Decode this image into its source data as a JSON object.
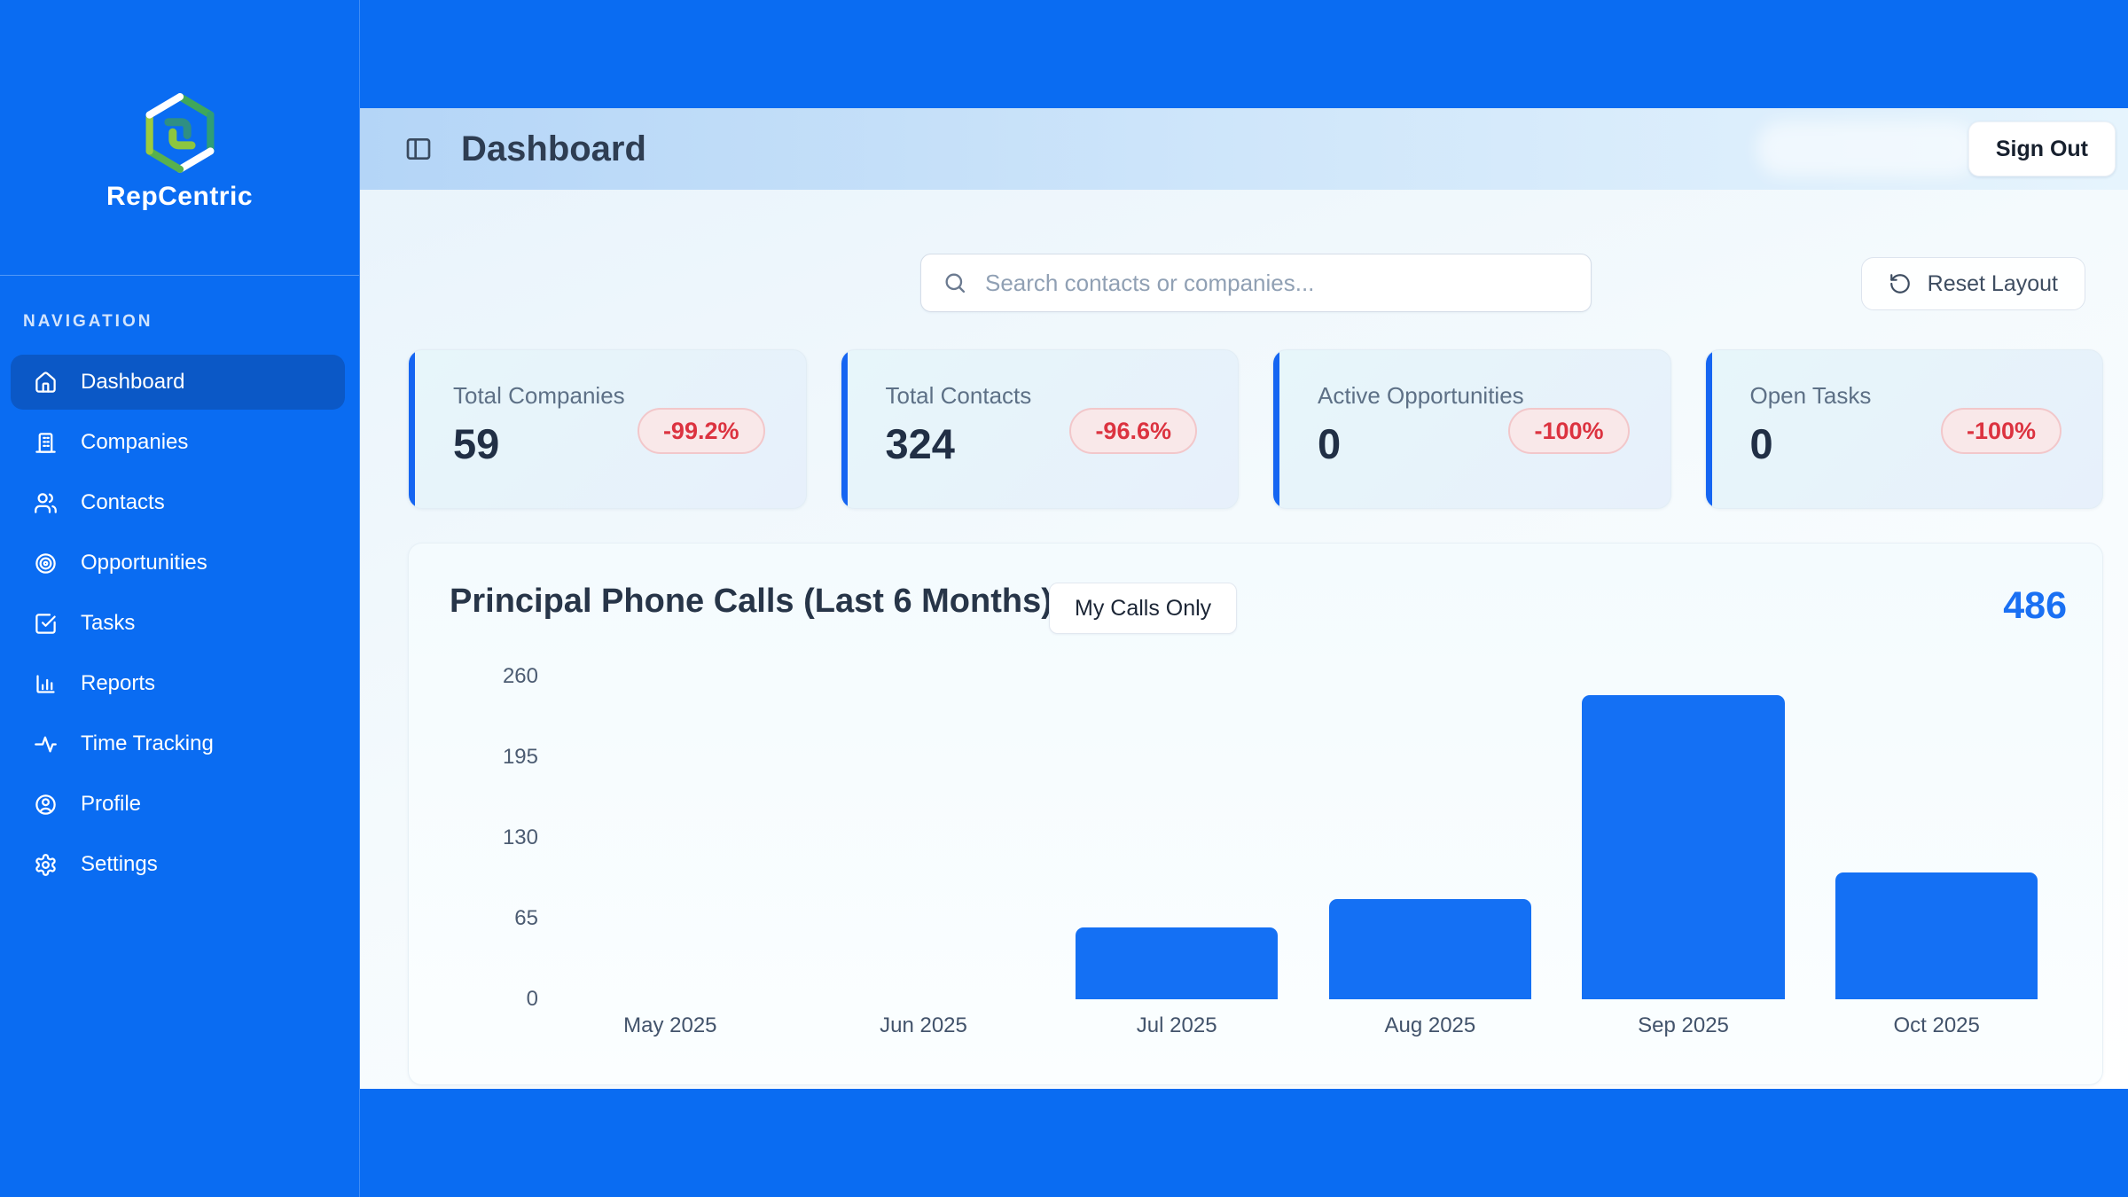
{
  "sidebar": {
    "brand": "RepCentric",
    "section_label": "NAVIGATION",
    "items": [
      {
        "label": "Dashboard",
        "icon": "home",
        "active": true
      },
      {
        "label": "Companies",
        "icon": "building"
      },
      {
        "label": "Contacts",
        "icon": "users"
      },
      {
        "label": "Opportunities",
        "icon": "target"
      },
      {
        "label": "Tasks",
        "icon": "check-square"
      },
      {
        "label": "Reports",
        "icon": "bar-chart"
      },
      {
        "label": "Time Tracking",
        "icon": "activity"
      },
      {
        "label": "Profile",
        "icon": "user-circle"
      },
      {
        "label": "Settings",
        "icon": "gear"
      }
    ]
  },
  "header": {
    "title": "Dashboard",
    "sign_out_label": "Sign Out"
  },
  "toolbar": {
    "search_placeholder": "Search contacts or companies...",
    "reset_label": "Reset Layout"
  },
  "stats": {
    "cards": [
      {
        "label": "Total Companies",
        "value": "59",
        "delta": "-99.2%"
      },
      {
        "label": "Total Contacts",
        "value": "324",
        "delta": "-96.6%"
      },
      {
        "label": "Active Opportunities",
        "value": "0",
        "delta": "-100%"
      },
      {
        "label": "Open Tasks",
        "value": "0",
        "delta": "-100%"
      }
    ]
  },
  "chart": {
    "title": "Principal Phone Calls (Last 6 Months)",
    "toggle_label": "My Calls Only"
  },
  "chart_data": {
    "type": "bar",
    "title": "Principal Phone Calls (Last 6 Months)",
    "categories": [
      "May 2025",
      "Jun 2025",
      "Jul 2025",
      "Aug 2025",
      "Sep 2025",
      "Oct 2025"
    ],
    "values": [
      0,
      0,
      58,
      81,
      245,
      102
    ],
    "total": 486,
    "xlabel": "",
    "ylabel": "",
    "ylim": [
      0,
      260
    ],
    "yticks": [
      0,
      65,
      130,
      195,
      260
    ],
    "bar_color": "#1470f4",
    "grid": false,
    "legend": false
  },
  "colors": {
    "page_blue": "#0a6cf2",
    "active_nav": "#0b58c6",
    "accent_blue": "#1565f2",
    "badge_red": "#dc3340",
    "total_blue": "#1a70f3"
  }
}
